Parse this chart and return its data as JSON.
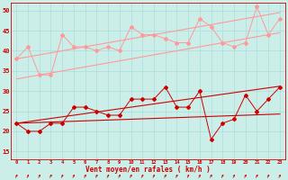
{
  "bg_color": "#cceee8",
  "grid_color": "#aadddd",
  "line_color_light": "#ff9999",
  "line_color_dark": "#cc0000",
  "xlabel": "Vent moyen/en rafales ( km/h )",
  "xlabel_color": "#cc0000",
  "tick_color": "#cc0000",
  "axis_color": "#cc0000",
  "arrow_color": "#cc0000",
  "ylim": [
    13,
    52
  ],
  "yticks": [
    15,
    20,
    25,
    30,
    35,
    40,
    45,
    50
  ],
  "x": [
    0,
    1,
    2,
    3,
    4,
    5,
    6,
    7,
    8,
    9,
    10,
    11,
    12,
    13,
    14,
    15,
    16,
    17,
    18,
    19,
    20,
    21,
    22,
    23
  ],
  "series1": [
    38,
    41,
    34,
    34,
    44,
    41,
    41,
    40,
    41,
    40,
    46,
    44,
    44,
    43,
    42,
    42,
    48,
    46,
    42,
    41,
    42,
    51,
    44,
    48
  ],
  "series2": [
    22,
    20,
    20,
    22,
    22,
    26,
    26,
    25,
    24,
    24,
    28,
    28,
    28,
    31,
    26,
    26,
    30,
    18,
    22,
    23,
    29,
    25,
    28,
    31
  ],
  "trend1_light": [
    38.0,
    38.5,
    39.0,
    39.5,
    40.0,
    40.5,
    41.0,
    41.5,
    42.0,
    42.5,
    43.0,
    43.5,
    44.0,
    44.5,
    45.0,
    45.5,
    46.0,
    46.5,
    47.0,
    47.5,
    48.0,
    48.5,
    49.0,
    49.5
  ],
  "trend2_light": [
    33.0,
    33.5,
    34.0,
    34.5,
    35.0,
    35.5,
    36.0,
    36.5,
    37.0,
    37.5,
    38.0,
    38.5,
    39.0,
    39.5,
    40.0,
    40.5,
    41.0,
    41.5,
    42.0,
    42.5,
    43.0,
    43.5,
    44.0,
    44.5
  ],
  "trend3_dark": [
    22.0,
    22.4,
    22.8,
    23.2,
    23.6,
    24.0,
    24.4,
    24.8,
    25.2,
    25.6,
    26.0,
    26.4,
    26.8,
    27.2,
    27.6,
    28.0,
    28.4,
    28.8,
    29.2,
    29.6,
    30.0,
    30.4,
    30.8,
    31.2
  ],
  "trend4_dark": [
    22.0,
    22.1,
    22.2,
    22.3,
    22.4,
    22.5,
    22.6,
    22.7,
    22.8,
    22.9,
    23.0,
    23.1,
    23.2,
    23.3,
    23.4,
    23.5,
    23.6,
    23.7,
    23.8,
    23.9,
    24.0,
    24.1,
    24.2,
    24.3
  ]
}
